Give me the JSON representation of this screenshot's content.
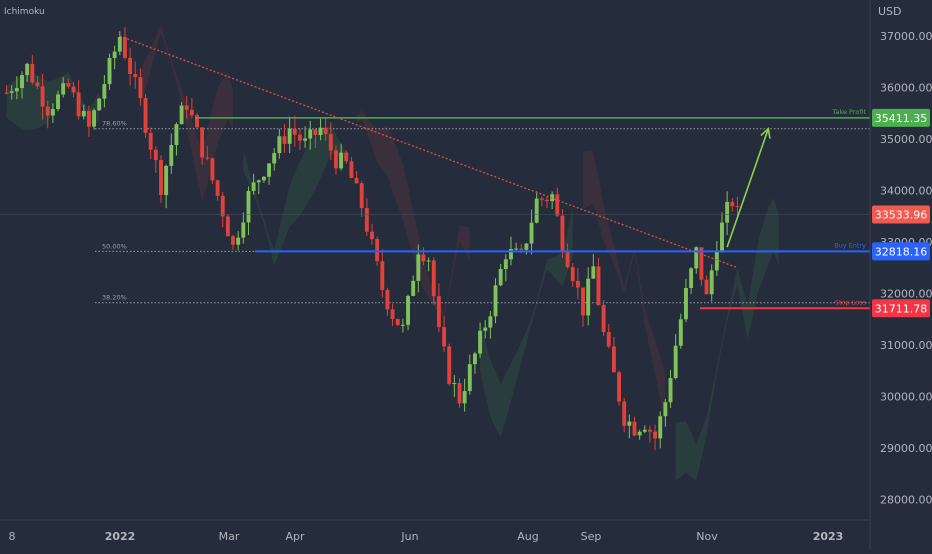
{
  "indicator_label": "Ichimoku",
  "currency": "USD",
  "colors": {
    "background": "#252c3b",
    "up": "#7fc25a",
    "down": "#e0413a",
    "take_profit": "#4caf50",
    "buy_entry": "#2962ff",
    "stop_loss": "#f23645",
    "current": "#f05a50",
    "trend": "#e04b4b",
    "arrow": "#8bd34f",
    "text": "#b2b5be"
  },
  "chart_data": {
    "type": "candlestick",
    "y_axis": {
      "ticks": [
        "37000.00",
        "36000.00",
        "35000.00",
        "34000.00",
        "33000.00",
        "32000.00",
        "31000.00",
        "30000.00",
        "29000.00",
        "28000.00"
      ],
      "range": [
        27600,
        37700
      ]
    },
    "x_axis": {
      "ticks": [
        "8",
        "2022",
        "Mar",
        "Apr",
        "Jun",
        "Aug",
        "Sep",
        "Nov",
        "2023"
      ]
    },
    "fib_levels": [
      {
        "label": "78.60%",
        "price": 35200
      },
      {
        "label": "50.00%",
        "price": 32818
      },
      {
        "label": "38.20%",
        "price": 31820
      }
    ],
    "levels": [
      {
        "name": "Take Profit",
        "label": "Take Profit",
        "price": 35411.35,
        "badge": "35411.35"
      },
      {
        "name": "Buy Entry",
        "label": "Buy Entry",
        "price": 32818.16,
        "badge": "32818.16"
      },
      {
        "name": "Stop Loss",
        "label": "Stop Loss",
        "price": 31711.78,
        "badge": "31711.78"
      }
    ],
    "current_price": {
      "price": 33533.96,
      "badge": "33533.96"
    },
    "trendline": {
      "start": {
        "period": 22,
        "price": 37000
      },
      "end": {
        "period": 142,
        "price": 32500
      }
    },
    "target_arrow": {
      "start": {
        "period": 140,
        "price": 32900
      },
      "end": {
        "period": 148,
        "price": 35200
      }
    },
    "price_path": [
      [
        0,
        35900
      ],
      [
        4,
        36400
      ],
      [
        8,
        35600
      ],
      [
        12,
        36000
      ],
      [
        16,
        35200
      ],
      [
        20,
        36400
      ],
      [
        22,
        37000
      ],
      [
        26,
        35700
      ],
      [
        30,
        34100
      ],
      [
        33,
        35300
      ],
      [
        35,
        35700
      ],
      [
        38,
        34800
      ],
      [
        42,
        33600
      ],
      [
        44,
        32900
      ],
      [
        47,
        33900
      ],
      [
        51,
        34600
      ],
      [
        55,
        35200
      ],
      [
        58,
        34900
      ],
      [
        61,
        35200
      ],
      [
        64,
        34600
      ],
      [
        66,
        34500
      ],
      [
        69,
        33700
      ],
      [
        71,
        32900
      ],
      [
        73,
        32100
      ],
      [
        75,
        31600
      ],
      [
        77,
        31300
      ],
      [
        78,
        31800
      ],
      [
        80,
        32900
      ],
      [
        82,
        32700
      ],
      [
        84,
        31200
      ],
      [
        86,
        30400
      ],
      [
        88,
        29950
      ],
      [
        91,
        30800
      ],
      [
        94,
        31700
      ],
      [
        97,
        32800
      ],
      [
        100,
        32700
      ],
      [
        103,
        33800
      ],
      [
        106,
        33900
      ],
      [
        108,
        33000
      ],
      [
        110,
        32400
      ],
      [
        112,
        31700
      ],
      [
        114,
        32500
      ],
      [
        116,
        31200
      ],
      [
        118,
        30400
      ],
      [
        120,
        29600
      ],
      [
        122,
        29400
      ],
      [
        124,
        29500
      ],
      [
        126,
        29200
      ],
      [
        128,
        29900
      ],
      [
        130,
        31000
      ],
      [
        132,
        32000
      ],
      [
        134,
        32800
      ],
      [
        136,
        31900
      ],
      [
        138,
        33000
      ],
      [
        140,
        33600
      ],
      [
        141,
        33800
      ],
      [
        142,
        33534
      ]
    ]
  }
}
